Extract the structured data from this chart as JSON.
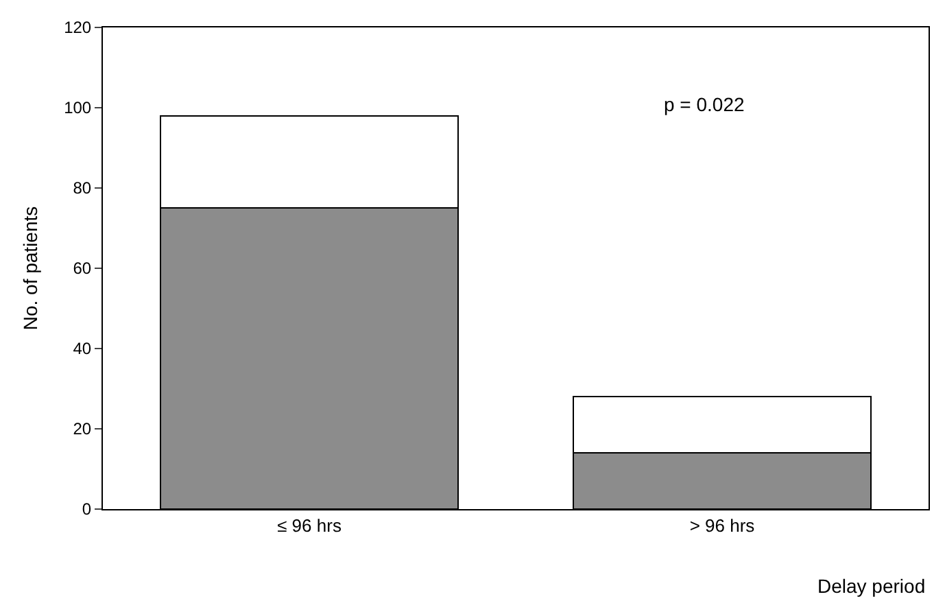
{
  "chart_data": {
    "type": "bar",
    "stacked": true,
    "categories": [
      "≤ 96 hrs",
      "> 96 hrs"
    ],
    "series": [
      {
        "color": "#8c8c8c",
        "values": [
          75,
          14
        ]
      },
      {
        "color": "#ffffff",
        "values": [
          23,
          14
        ]
      }
    ],
    "xlabel": "Delay period",
    "ylabel": "No. of patients",
    "ylim": [
      0,
      120
    ],
    "yticks": [
      0,
      20,
      40,
      60,
      80,
      100,
      120
    ],
    "annotations": [
      "p = 0.022"
    ]
  }
}
